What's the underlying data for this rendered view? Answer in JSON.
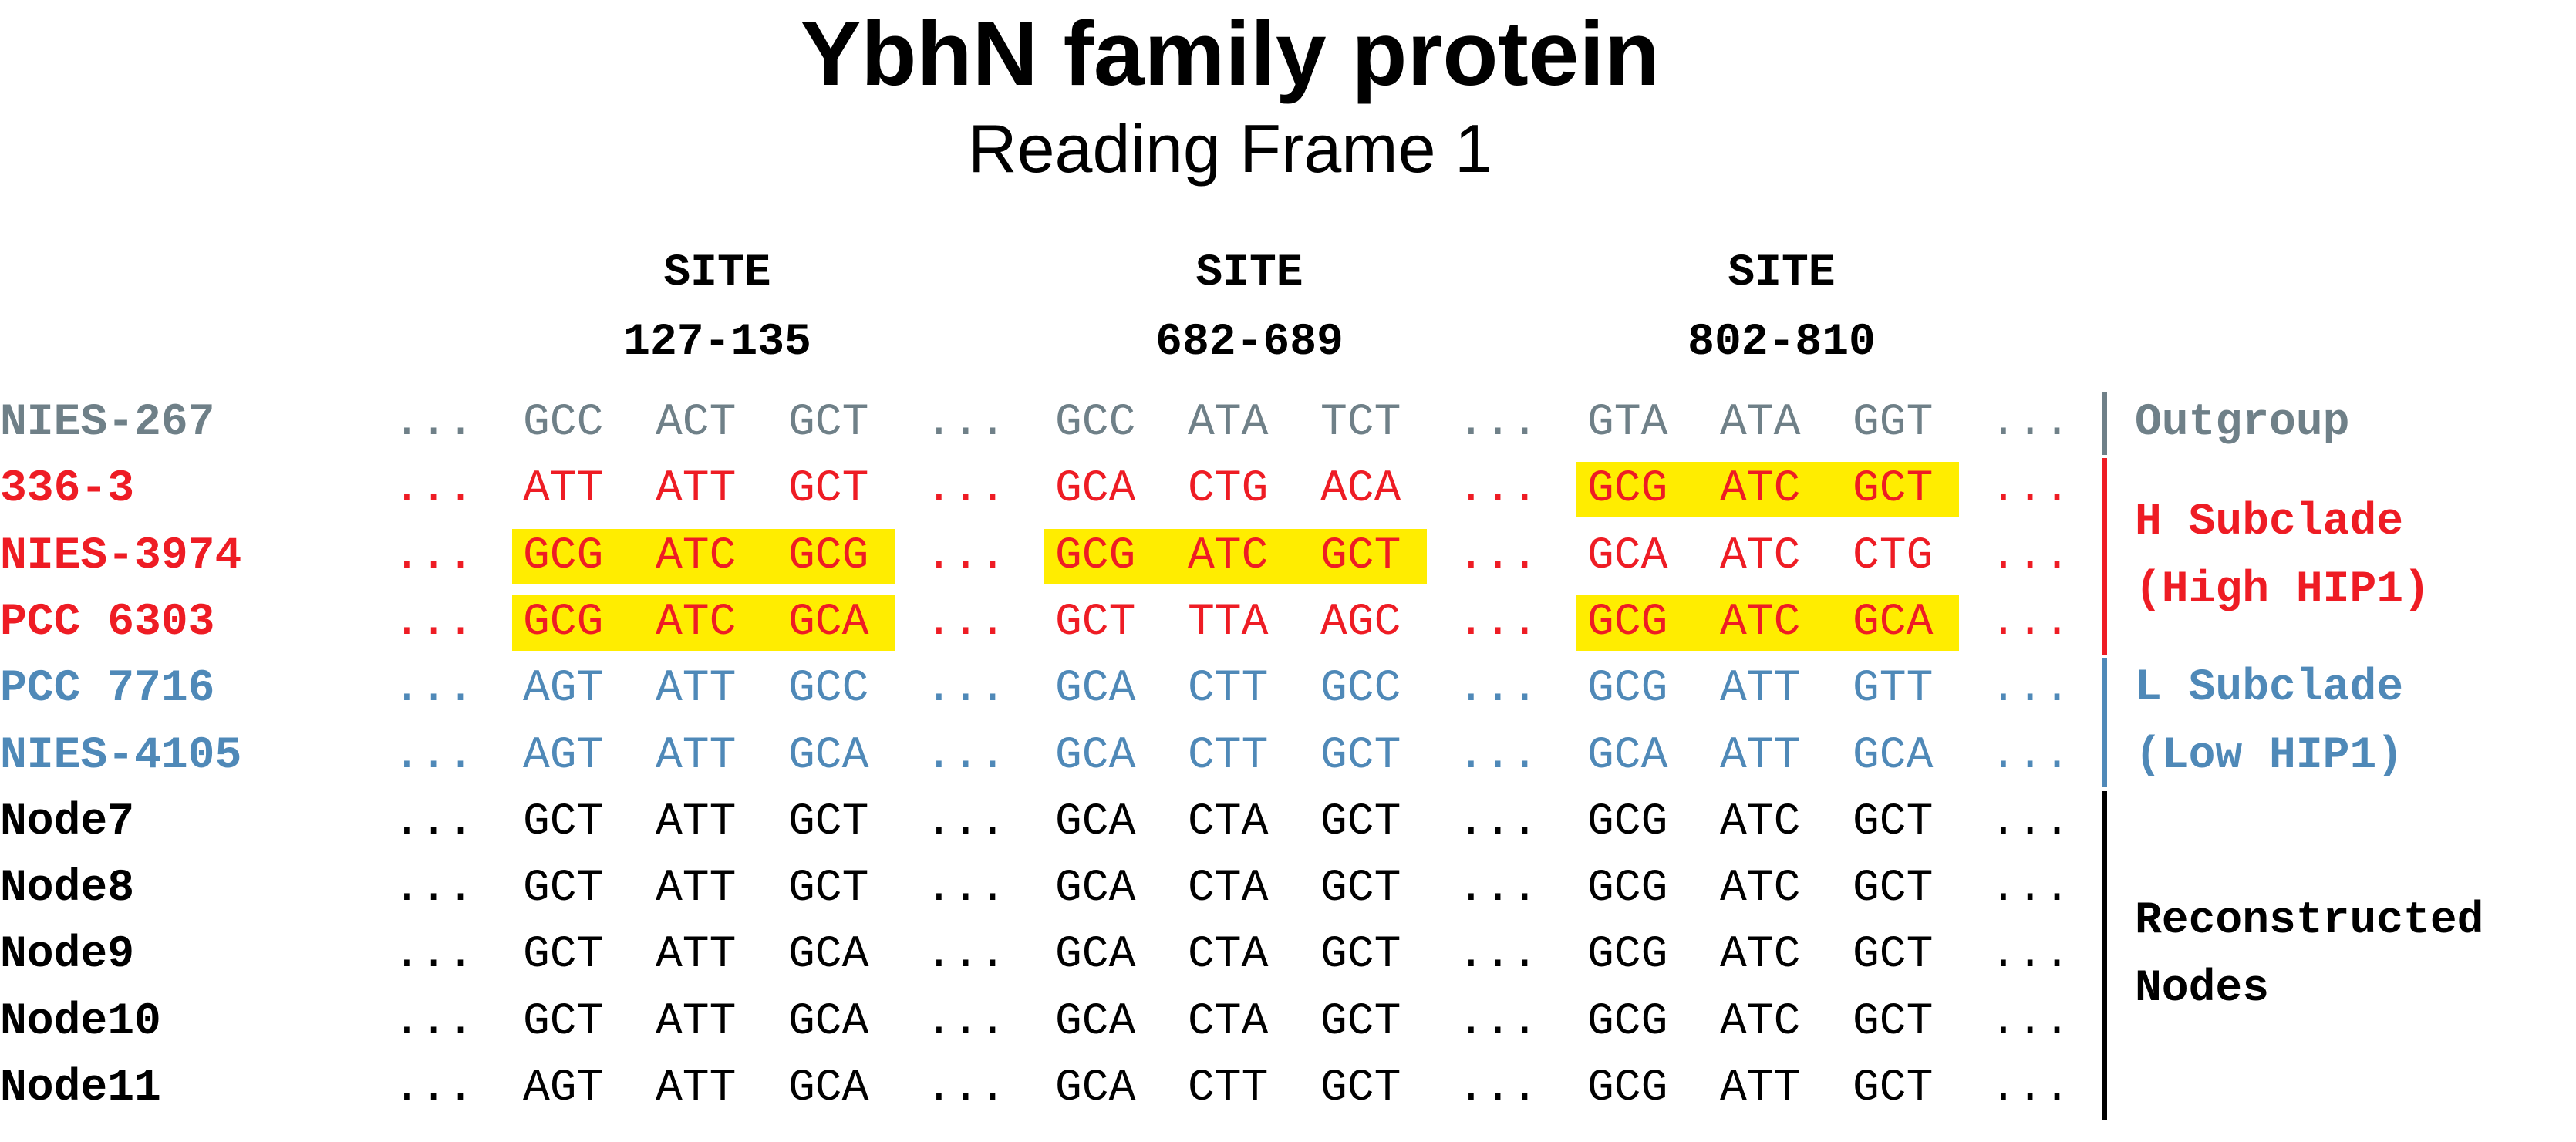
{
  "title": "YbhN family protein",
  "subtitle": "Reading Frame 1",
  "colors": {
    "outgroup": "#6f8088",
    "h_subclade": "#ee1c24",
    "l_subclade": "#4f89b8",
    "nodes": "#000000",
    "highlight": "#ffed00"
  },
  "ellipsis": "...",
  "sites": [
    {
      "label": "SITE",
      "range": "127-135"
    },
    {
      "label": "SITE",
      "range": "682-689"
    },
    {
      "label": "SITE",
      "range": "802-810"
    }
  ],
  "rows": [
    {
      "name": "NIES-267",
      "group": "outgroup",
      "sites": [
        [
          "GCC",
          "ACT",
          "GCT"
        ],
        [
          "GCC",
          "ATA",
          "TCT"
        ],
        [
          "GTA",
          "ATA",
          "GGT"
        ]
      ],
      "highlight": [
        false,
        false,
        false
      ]
    },
    {
      "name": "336-3",
      "group": "h_subclade",
      "sites": [
        [
          "ATT",
          "ATT",
          "GCT"
        ],
        [
          "GCA",
          "CTG",
          "ACA"
        ],
        [
          "GCG",
          "ATC",
          "GCT"
        ]
      ],
      "highlight": [
        false,
        false,
        true
      ]
    },
    {
      "name": "NIES-3974",
      "group": "h_subclade",
      "sites": [
        [
          "GCG",
          "ATC",
          "GCG"
        ],
        [
          "GCG",
          "ATC",
          "GCT"
        ],
        [
          "GCA",
          "ATC",
          "CTG"
        ]
      ],
      "highlight": [
        true,
        true,
        false
      ]
    },
    {
      "name": "PCC 6303",
      "group": "h_subclade",
      "sites": [
        [
          "GCG",
          "ATC",
          "GCA"
        ],
        [
          "GCT",
          "TTA",
          "AGC"
        ],
        [
          "GCG",
          "ATC",
          "GCA"
        ]
      ],
      "highlight": [
        true,
        false,
        true
      ]
    },
    {
      "name": "PCC 7716",
      "group": "l_subclade",
      "sites": [
        [
          "AGT",
          "ATT",
          "GCC"
        ],
        [
          "GCA",
          "CTT",
          "GCC"
        ],
        [
          "GCG",
          "ATT",
          "GTT"
        ]
      ],
      "highlight": [
        false,
        false,
        false
      ]
    },
    {
      "name": "NIES-4105",
      "group": "l_subclade",
      "sites": [
        [
          "AGT",
          "ATT",
          "GCA"
        ],
        [
          "GCA",
          "CTT",
          "GCT"
        ],
        [
          "GCA",
          "ATT",
          "GCA"
        ]
      ],
      "highlight": [
        false,
        false,
        false
      ]
    },
    {
      "name": "Node7",
      "group": "nodes",
      "sites": [
        [
          "GCT",
          "ATT",
          "GCT"
        ],
        [
          "GCA",
          "CTA",
          "GCT"
        ],
        [
          "GCG",
          "ATC",
          "GCT"
        ]
      ],
      "highlight": [
        false,
        false,
        false
      ]
    },
    {
      "name": "Node8",
      "group": "nodes",
      "sites": [
        [
          "GCT",
          "ATT",
          "GCT"
        ],
        [
          "GCA",
          "CTA",
          "GCT"
        ],
        [
          "GCG",
          "ATC",
          "GCT"
        ]
      ],
      "highlight": [
        false,
        false,
        false
      ]
    },
    {
      "name": "Node9",
      "group": "nodes",
      "sites": [
        [
          "GCT",
          "ATT",
          "GCA"
        ],
        [
          "GCA",
          "CTA",
          "GCT"
        ],
        [
          "GCG",
          "ATC",
          "GCT"
        ]
      ],
      "highlight": [
        false,
        false,
        false
      ]
    },
    {
      "name": "Node10",
      "group": "nodes",
      "sites": [
        [
          "GCT",
          "ATT",
          "GCA"
        ],
        [
          "GCA",
          "CTA",
          "GCT"
        ],
        [
          "GCG",
          "ATC",
          "GCT"
        ]
      ],
      "highlight": [
        false,
        false,
        false
      ]
    },
    {
      "name": "Node11",
      "group": "nodes",
      "sites": [
        [
          "AGT",
          "ATT",
          "GCA"
        ],
        [
          "GCA",
          "CTT",
          "GCT"
        ],
        [
          "GCG",
          "ATT",
          "GCT"
        ]
      ],
      "highlight": [
        false,
        false,
        false
      ]
    }
  ],
  "groups": [
    {
      "id": "outgroup",
      "lines": [
        "Outgroup"
      ]
    },
    {
      "id": "h_subclade",
      "lines": [
        "H Subclade",
        "(High HIP1)"
      ]
    },
    {
      "id": "l_subclade",
      "lines": [
        "L Subclade",
        "(Low HIP1)"
      ]
    },
    {
      "id": "nodes",
      "lines": [
        "Reconstructed",
        "Nodes"
      ]
    }
  ]
}
